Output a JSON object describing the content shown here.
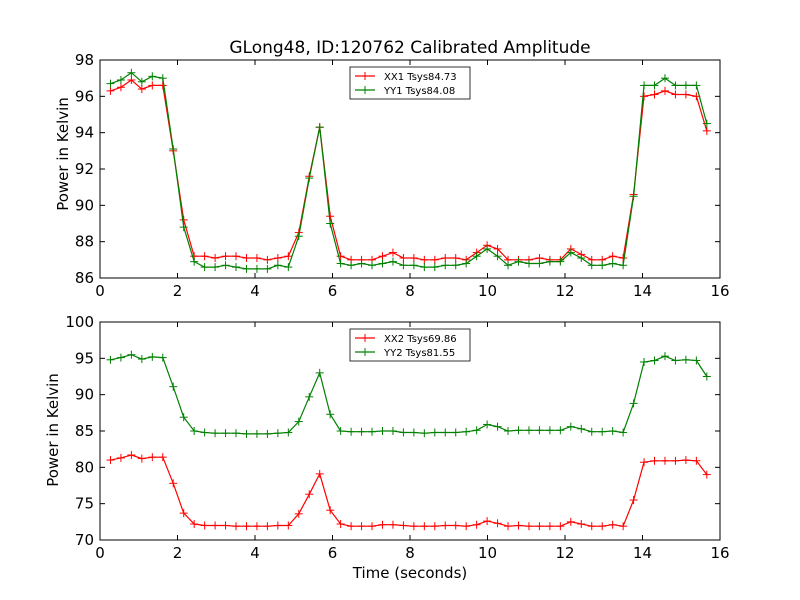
{
  "chart_data": [
    {
      "type": "line",
      "title": "GLong48, ID:120762 Calibrated Amplitude",
      "xlabel": "",
      "ylabel": "Power in Kelvin",
      "xlim": [
        0,
        16
      ],
      "ylim": [
        86,
        98
      ],
      "xticks": [
        0,
        2,
        4,
        6,
        8,
        10,
        12,
        14,
        16
      ],
      "yticks": [
        86,
        88,
        90,
        92,
        94,
        96,
        98
      ],
      "grid": false,
      "legend": "top-center",
      "x": [
        0.27,
        0.54,
        0.81,
        1.08,
        1.35,
        1.62,
        1.89,
        2.16,
        2.43,
        2.7,
        2.97,
        3.24,
        3.51,
        3.78,
        4.05,
        4.32,
        4.59,
        4.86,
        5.13,
        5.4,
        5.67,
        5.94,
        6.21,
        6.48,
        6.75,
        7.02,
        7.29,
        7.56,
        7.83,
        8.1,
        8.37,
        8.64,
        8.91,
        9.18,
        9.45,
        9.72,
        9.99,
        10.26,
        10.53,
        10.8,
        11.07,
        11.34,
        11.61,
        11.88,
        12.15,
        12.42,
        12.69,
        12.96,
        13.23,
        13.5,
        13.77,
        14.04,
        14.31,
        14.58,
        14.85,
        15.12,
        15.39,
        15.66
      ],
      "series": [
        {
          "name": "XX1 Tsys84.73",
          "color": "#ff0000",
          "values": [
            96.3,
            96.5,
            96.9,
            96.4,
            96.6,
            96.6,
            93.0,
            89.2,
            87.2,
            87.2,
            87.1,
            87.2,
            87.2,
            87.1,
            87.1,
            87.0,
            87.1,
            87.2,
            88.5,
            91.6,
            94.3,
            89.4,
            87.2,
            87.0,
            87.0,
            87.0,
            87.2,
            87.4,
            87.1,
            87.1,
            87.0,
            87.0,
            87.1,
            87.1,
            87.0,
            87.4,
            87.8,
            87.6,
            87.0,
            87.0,
            87.0,
            87.1,
            87.0,
            87.0,
            87.6,
            87.3,
            87.0,
            87.0,
            87.2,
            87.1,
            90.6,
            96.0,
            96.1,
            96.3,
            96.1,
            96.1,
            96.0,
            94.1
          ]
        },
        {
          "name": "YY1 Tsys84.08",
          "color": "#008000",
          "values": [
            96.7,
            96.9,
            97.3,
            96.8,
            97.1,
            97.0,
            93.1,
            88.8,
            86.9,
            86.6,
            86.6,
            86.7,
            86.6,
            86.5,
            86.5,
            86.5,
            86.7,
            86.6,
            88.3,
            91.5,
            94.3,
            89.0,
            86.8,
            86.7,
            86.8,
            86.7,
            86.8,
            86.9,
            86.7,
            86.7,
            86.6,
            86.6,
            86.7,
            86.7,
            86.8,
            87.2,
            87.6,
            87.2,
            86.7,
            86.9,
            86.8,
            86.8,
            86.9,
            86.9,
            87.4,
            87.1,
            86.7,
            86.7,
            86.8,
            86.7,
            90.5,
            96.6,
            96.6,
            97.0,
            96.6,
            96.6,
            96.6,
            94.5
          ]
        }
      ]
    },
    {
      "type": "line",
      "title": "",
      "xlabel": "Time (seconds)",
      "ylabel": "Power in Kelvin",
      "xlim": [
        0,
        16
      ],
      "ylim": [
        70,
        100
      ],
      "xticks": [
        0,
        2,
        4,
        6,
        8,
        10,
        12,
        14,
        16
      ],
      "yticks": [
        70,
        75,
        80,
        85,
        90,
        95,
        100
      ],
      "grid": false,
      "legend": "top-center",
      "x": [
        0.27,
        0.54,
        0.81,
        1.08,
        1.35,
        1.62,
        1.89,
        2.16,
        2.43,
        2.7,
        2.97,
        3.24,
        3.51,
        3.78,
        4.05,
        4.32,
        4.59,
        4.86,
        5.13,
        5.4,
        5.67,
        5.94,
        6.21,
        6.48,
        6.75,
        7.02,
        7.29,
        7.56,
        7.83,
        8.1,
        8.37,
        8.64,
        8.91,
        9.18,
        9.45,
        9.72,
        9.99,
        10.26,
        10.53,
        10.8,
        11.07,
        11.34,
        11.61,
        11.88,
        12.15,
        12.42,
        12.69,
        12.96,
        13.23,
        13.5,
        13.77,
        14.04,
        14.31,
        14.58,
        14.85,
        15.12,
        15.39,
        15.66
      ],
      "series": [
        {
          "name": "XX2 Tsys69.86",
          "color": "#ff0000",
          "values": [
            81.0,
            81.3,
            81.7,
            81.2,
            81.4,
            81.4,
            77.8,
            73.7,
            72.2,
            72.0,
            72.0,
            72.0,
            71.9,
            71.9,
            71.9,
            71.9,
            72.0,
            72.0,
            73.6,
            76.3,
            79.1,
            74.1,
            72.2,
            71.9,
            71.9,
            71.9,
            72.1,
            72.1,
            72.0,
            71.9,
            71.9,
            71.9,
            72.0,
            72.0,
            71.9,
            72.1,
            72.6,
            72.3,
            71.9,
            72.0,
            71.9,
            71.9,
            71.9,
            71.9,
            72.5,
            72.2,
            71.9,
            71.9,
            72.1,
            71.9,
            75.5,
            80.7,
            80.9,
            80.9,
            80.9,
            81.0,
            80.9,
            79.0
          ]
        },
        {
          "name": "YY2 Tsys81.55",
          "color": "#008000",
          "values": [
            94.8,
            95.1,
            95.5,
            94.9,
            95.2,
            95.1,
            91.1,
            86.9,
            85.0,
            84.8,
            84.7,
            84.7,
            84.7,
            84.6,
            84.6,
            84.6,
            84.7,
            84.8,
            86.3,
            89.7,
            93.0,
            87.3,
            85.0,
            84.9,
            84.9,
            84.9,
            85.0,
            85.0,
            84.8,
            84.8,
            84.7,
            84.8,
            84.8,
            84.8,
            84.9,
            85.1,
            85.9,
            85.6,
            85.0,
            85.1,
            85.1,
            85.1,
            85.1,
            85.1,
            85.6,
            85.3,
            84.9,
            84.9,
            85.0,
            84.8,
            88.8,
            94.5,
            94.7,
            95.3,
            94.7,
            94.8,
            94.7,
            92.5
          ]
        }
      ]
    }
  ]
}
